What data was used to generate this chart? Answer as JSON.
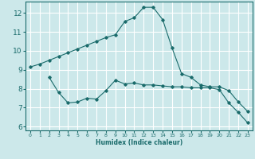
{
  "xlabel": "Humidex (Indice chaleur)",
  "x_ticks": [
    0,
    1,
    2,
    3,
    4,
    5,
    6,
    7,
    8,
    9,
    10,
    11,
    12,
    13,
    14,
    15,
    16,
    17,
    18,
    19,
    20,
    21,
    22,
    23
  ],
  "ylim": [
    5.8,
    12.6
  ],
  "xlim": [
    -0.5,
    23.5
  ],
  "yticks": [
    6,
    7,
    8,
    9,
    10,
    11,
    12
  ],
  "bg_color": "#cce8ea",
  "line_color": "#1a6b6b",
  "grid_color": "#ffffff",
  "line1": {
    "x": [
      0,
      1,
      2,
      3,
      4,
      5,
      6,
      7,
      8,
      9,
      10,
      11,
      12,
      13,
      14,
      15,
      16,
      17,
      18,
      19,
      20,
      21,
      22,
      23
    ],
    "y": [
      9.15,
      9.3,
      9.5,
      9.7,
      9.9,
      10.1,
      10.3,
      10.5,
      10.7,
      10.85,
      11.55,
      11.75,
      12.3,
      12.3,
      11.65,
      10.15,
      8.8,
      8.6,
      8.2,
      8.1,
      8.1,
      7.9,
      7.3,
      6.8
    ]
  },
  "line2": {
    "x": [
      2,
      3,
      4,
      5,
      6,
      7,
      8,
      9,
      10,
      11,
      12,
      13,
      14,
      15,
      16,
      17,
      18,
      19,
      20,
      21,
      22,
      23
    ],
    "y": [
      8.6,
      7.8,
      7.25,
      7.3,
      7.5,
      7.45,
      7.9,
      8.45,
      8.25,
      8.3,
      8.2,
      8.2,
      8.15,
      8.1,
      8.1,
      8.05,
      8.05,
      8.05,
      7.95,
      7.25,
      6.75,
      6.2
    ]
  }
}
